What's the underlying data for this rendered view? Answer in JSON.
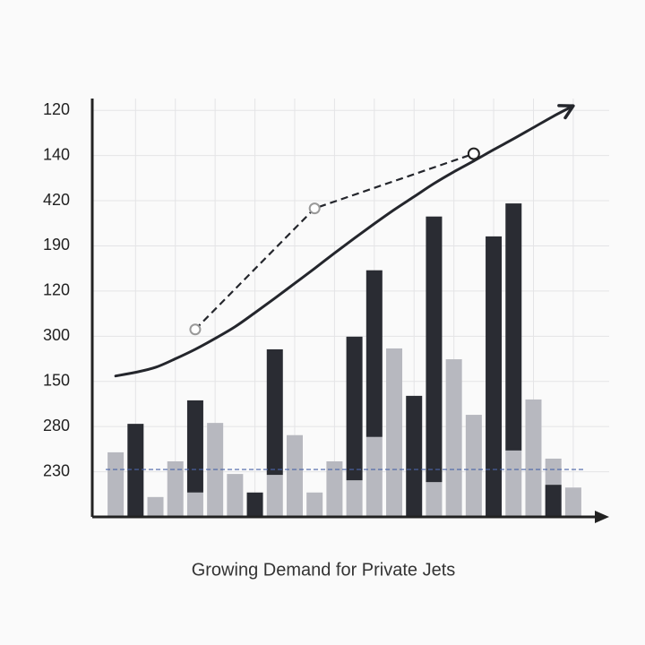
{
  "chart_data": {
    "type": "bar",
    "title": "Growing Demand for Private Jets",
    "categories": [
      null,
      null,
      null,
      null,
      null,
      null,
      null,
      null,
      null,
      null,
      null,
      null,
      null,
      null,
      null,
      null,
      null,
      null,
      null,
      null,
      null,
      null,
      null,
      null
    ],
    "ylim": [
      0,
      9.5
    ],
    "yticks": [
      {
        "value": 1,
        "label": "230"
      },
      {
        "value": 2,
        "label": "280"
      },
      {
        "value": 3,
        "label": "150"
      },
      {
        "value": 4,
        "label": "300"
      },
      {
        "value": 5,
        "label": "120"
      },
      {
        "value": 6,
        "label": "190"
      },
      {
        "value": 7,
        "label": "420"
      },
      {
        "value": 8,
        "label": "140"
      },
      {
        "value": 9,
        "label": "120"
      }
    ],
    "grid": true,
    "bars": {
      "color": "#b7b8bf",
      "values": [
        1.43,
        null,
        0.44,
        1.23,
        0.54,
        2.08,
        0.95,
        null,
        0.93,
        1.81,
        0.54,
        1.23,
        0.81,
        1.77,
        3.73,
        null,
        0.77,
        3.49,
        2.26,
        null,
        1.47,
        2.6,
        1.29,
        0.65
      ]
    },
    "range_bars": {
      "color": "#2a2c33",
      "low": [
        null,
        0,
        null,
        null,
        0.54,
        null,
        null,
        0,
        0.93,
        null,
        null,
        null,
        0.81,
        1.77,
        null,
        0,
        0.77,
        null,
        null,
        0,
        1.47,
        null,
        0,
        null
      ],
      "high": [
        null,
        2.06,
        null,
        null,
        2.58,
        null,
        null,
        0.54,
        3.71,
        null,
        null,
        null,
        3.99,
        5.46,
        null,
        2.68,
        6.65,
        null,
        null,
        6.21,
        6.94,
        null,
        0.71,
        null
      ]
    },
    "trend_line": {
      "color": "#24262c",
      "values": [
        3.12,
        3.2,
        3.31,
        3.5,
        3.71,
        3.95,
        4.21,
        4.52,
        4.84,
        5.17,
        5.5,
        5.84,
        6.17,
        6.49,
        6.8,
        7.09,
        7.38,
        7.64,
        7.88,
        8.13,
        8.37,
        8.62,
        8.87,
        9.1
      ],
      "arrow": true
    },
    "dashed_line": {
      "color": "#24262c",
      "values": [
        null,
        null,
        null,
        null,
        4.15,
        null,
        null,
        null,
        null,
        null,
        6.83,
        null,
        null,
        null,
        null,
        null,
        null,
        null,
        8.04,
        null,
        null,
        null,
        null,
        null
      ],
      "connect_gaps": true
    },
    "reference_line": {
      "value": 1.05,
      "color": "#4a64a8"
    }
  }
}
